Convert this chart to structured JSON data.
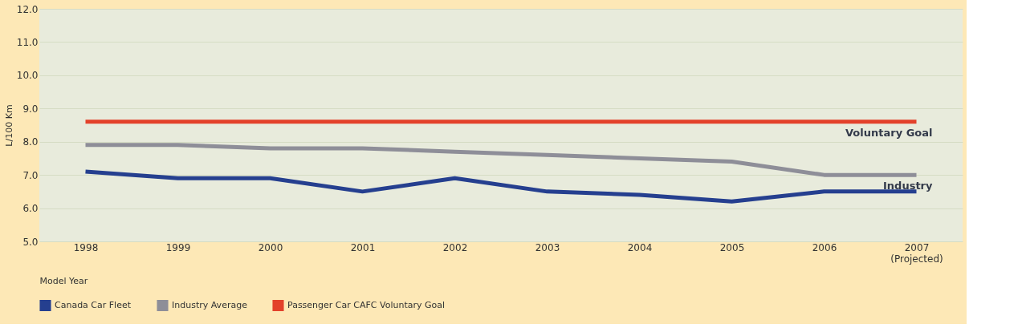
{
  "chart_data": {
    "type": "line",
    "xlabel": "Model Year",
    "ylabel": "L/100 Km",
    "categories": [
      "1998",
      "1999",
      "2000",
      "2001",
      "2002",
      "2003",
      "2004",
      "2005",
      "2006",
      "2007\n(Projected)"
    ],
    "series": [
      {
        "name": "Canada Car Fleet",
        "color": "#253f8f",
        "values": [
          7.1,
          6.9,
          6.9,
          6.5,
          6.9,
          6.5,
          6.4,
          6.2,
          6.5,
          6.5
        ]
      },
      {
        "name": "Industry Average",
        "color": "#8e8e98",
        "values": [
          7.9,
          7.9,
          7.8,
          7.8,
          7.7,
          7.6,
          7.5,
          7.4,
          7.0,
          7.0
        ]
      },
      {
        "name": "Passenger Car CAFC Voluntary Goal",
        "color": "#e3412a",
        "values": [
          8.6,
          8.6,
          8.6,
          8.6,
          8.6,
          8.6,
          8.6,
          8.6,
          8.6,
          8.6
        ]
      }
    ],
    "ylim": [
      5,
      12
    ],
    "yticks": [
      {
        "value": 5,
        "label": "5.0"
      },
      {
        "value": 6,
        "label": "6.0"
      },
      {
        "value": 7,
        "label": "7.0"
      },
      {
        "value": 8,
        "label": "8.0"
      },
      {
        "value": 9,
        "label": "9.0"
      },
      {
        "value": 10,
        "label": "10.0"
      },
      {
        "value": 11,
        "label": "11.0"
      },
      {
        "value": 12,
        "label": "12.0"
      }
    ],
    "grid": "y",
    "legend": "bottom",
    "marker": "none",
    "line_style": "solid",
    "annotations": [
      {
        "text": "Voluntary Goal",
        "x": "2007\n(Projected)",
        "y": 8.6
      },
      {
        "text": "Industry",
        "x": "2007\n(Projected)",
        "y": 7.0
      }
    ]
  }
}
